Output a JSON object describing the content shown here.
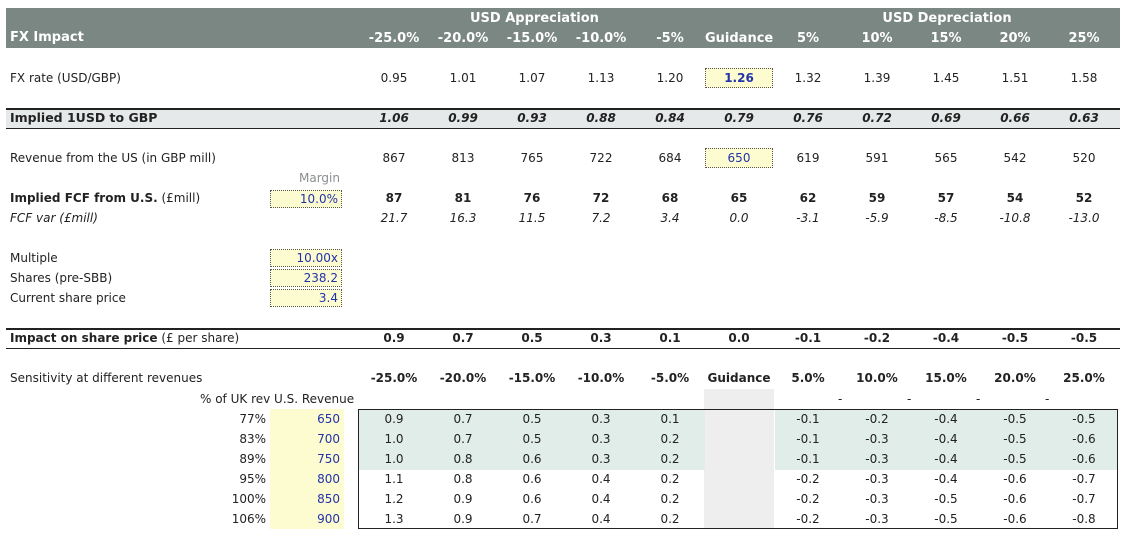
{
  "header": {
    "title": "FX Impact",
    "appreciation_label": "USD Appreciation",
    "depreciation_label": "USD Depreciation",
    "columns": [
      "-25.0%",
      "-20.0%",
      "-15.0%",
      "-10.0%",
      "-5%",
      "Guidance",
      "5%",
      "10%",
      "15%",
      "20%",
      "25%"
    ]
  },
  "fx_rate": {
    "label": "FX rate (USD/GBP)",
    "values": [
      "0.95",
      "1.01",
      "1.07",
      "1.13",
      "1.20",
      "1.26",
      "1.32",
      "1.39",
      "1.45",
      "1.51",
      "1.58"
    ]
  },
  "implied_usd": {
    "label": "Implied 1USD to GBP",
    "values": [
      "1.06",
      "0.99",
      "0.93",
      "0.88",
      "0.84",
      "0.79",
      "0.76",
      "0.72",
      "0.69",
      "0.66",
      "0.63"
    ]
  },
  "revenue": {
    "label": "Revenue from the US (in GBP mill)",
    "values": [
      "867",
      "813",
      "765",
      "722",
      "684",
      "650",
      "619",
      "591",
      "565",
      "542",
      "520"
    ]
  },
  "margin": {
    "caption": "Margin",
    "value": "10.0%"
  },
  "implied_fcf": {
    "label_bold": "Implied FCF from U.S.",
    "label_suffix": " (£mill)",
    "values": [
      "87",
      "81",
      "76",
      "72",
      "68",
      "65",
      "62",
      "59",
      "57",
      "54",
      "52"
    ]
  },
  "fcf_var": {
    "label": "FCF var (£mill)",
    "values": [
      "21.7",
      "16.3",
      "11.5",
      "7.2",
      "3.4",
      "0.0",
      "-3.1",
      "-5.9",
      "-8.5",
      "-10.8",
      "-13.0"
    ]
  },
  "inputs": [
    {
      "label": "Multiple",
      "value": "10.00x"
    },
    {
      "label": "Shares (pre-SBB)",
      "value": "238.2"
    },
    {
      "label": "Current share price",
      "value": "3.4"
    }
  ],
  "impact": {
    "label_bold": "Impact on share price",
    "label_suffix": " (£ per share)",
    "values": [
      "0.9",
      "0.7",
      "0.5",
      "0.3",
      "0.1",
      "0.0",
      "-0.1",
      "-0.2",
      "-0.4",
      "-0.5",
      "-0.5"
    ]
  },
  "sensitivity": {
    "label": "Sensitivity at different revenues",
    "columns": [
      "-25.0%",
      "-20.0%",
      "-15.0%",
      "-10.0%",
      "-5.0%",
      "Guidance",
      "5.0%",
      "10.0%",
      "15.0%",
      "20.0%",
      "25.0%"
    ],
    "sub_header": "% of UK rev U.S. Revenue",
    "dashes": [
      "-",
      "-",
      "-",
      "-"
    ],
    "rows": [
      {
        "pct": "77%",
        "rev": "650",
        "vals": [
          "0.9",
          "0.7",
          "0.5",
          "0.3",
          "0.1",
          "",
          "-0.1",
          "-0.2",
          "-0.4",
          "-0.5",
          "-0.5"
        ]
      },
      {
        "pct": "83%",
        "rev": "700",
        "vals": [
          "1.0",
          "0.7",
          "0.5",
          "0.3",
          "0.2",
          "",
          "-0.1",
          "-0.3",
          "-0.4",
          "-0.5",
          "-0.6"
        ]
      },
      {
        "pct": "89%",
        "rev": "750",
        "vals": [
          "1.0",
          "0.8",
          "0.6",
          "0.3",
          "0.2",
          "",
          "-0.1",
          "-0.3",
          "-0.4",
          "-0.5",
          "-0.6"
        ]
      },
      {
        "pct": "95%",
        "rev": "800",
        "vals": [
          "1.1",
          "0.8",
          "0.6",
          "0.4",
          "0.2",
          "",
          "-0.2",
          "-0.3",
          "-0.4",
          "-0.6",
          "-0.7"
        ]
      },
      {
        "pct": "100%",
        "rev": "850",
        "vals": [
          "1.2",
          "0.9",
          "0.6",
          "0.4",
          "0.2",
          "",
          "-0.2",
          "-0.3",
          "-0.5",
          "-0.6",
          "-0.7"
        ]
      },
      {
        "pct": "106%",
        "rev": "900",
        "vals": [
          "1.3",
          "0.9",
          "0.7",
          "0.4",
          "0.2",
          "",
          "-0.2",
          "-0.3",
          "-0.5",
          "-0.6",
          "-0.8"
        ]
      }
    ]
  }
}
